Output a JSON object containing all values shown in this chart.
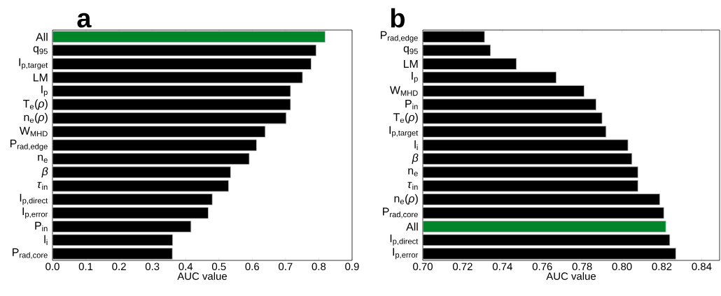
{
  "chart_data": [
    {
      "type": "bar",
      "orientation": "horizontal",
      "title": "a",
      "xlabel": "AUC value",
      "categories": [
        "All",
        "q$_{95}$",
        "I$_{p,target}$",
        "LM",
        "I$_{p}$",
        "T$_{e}$(*ρ*)",
        "n$_{e}$(*ρ*)",
        "W$_{MHD}$",
        "P$_{rad,edge}$",
        "n$_{e}$",
        "*β*",
        "*τ*$_{in}$",
        "I$_{p,direct}$",
        "I$_{p,error}$",
        "P$_{in}$",
        "l$_{i}$",
        "P$_{rad,core}$"
      ],
      "values": [
        0.819,
        0.792,
        0.777,
        0.751,
        0.715,
        0.715,
        0.702,
        0.639,
        0.613,
        0.591,
        0.535,
        0.529,
        0.48,
        0.468,
        0.416,
        0.361,
        0.36
      ],
      "colors": [
        "#00852b",
        "#000000",
        "#000000",
        "#000000",
        "#000000",
        "#000000",
        "#000000",
        "#000000",
        "#000000",
        "#000000",
        "#000000",
        "#000000",
        "#000000",
        "#000000",
        "#000000",
        "#000000",
        "#000000"
      ],
      "xlim": [
        0,
        0.9
      ],
      "xticks": [
        {
          "value": 0,
          "label": "0.0"
        },
        {
          "value": 0.1,
          "label": "0.1"
        },
        {
          "value": 0.2,
          "label": "0.2"
        },
        {
          "value": 0.3,
          "label": "0.3"
        },
        {
          "value": 0.4,
          "label": "0.4"
        },
        {
          "value": 0.5,
          "label": "0.5"
        },
        {
          "value": 0.6,
          "label": "0.6"
        },
        {
          "value": 0.7,
          "label": "0.7"
        },
        {
          "value": 0.8,
          "label": "0.8"
        },
        {
          "value": 0.9,
          "label": "0.9"
        }
      ]
    },
    {
      "type": "bar",
      "orientation": "horizontal",
      "title": "b",
      "xlabel": "AUC value",
      "categories": [
        "P$_{rad,edge}$",
        "q$_{95}$",
        "LM",
        "I$_{p}$",
        "W$_{MHD}$",
        "P$_{in}$",
        "T$_{e}$(*ρ*)",
        "I$_{p,target}$",
        "l$_{i}$",
        "*β*",
        "n$_{e}$",
        "*τ*$_{in}$",
        "n$_{e}$(*ρ*)",
        "P$_{rad,core}$",
        "All",
        "I$_{p,direct}$",
        "I$_{p,error}$"
      ],
      "values": [
        0.731,
        0.734,
        0.747,
        0.767,
        0.781,
        0.787,
        0.79,
        0.792,
        0.803,
        0.805,
        0.808,
        0.808,
        0.819,
        0.821,
        0.822,
        0.824,
        0.827
      ],
      "colors": [
        "#000000",
        "#000000",
        "#000000",
        "#000000",
        "#000000",
        "#000000",
        "#000000",
        "#000000",
        "#000000",
        "#000000",
        "#000000",
        "#000000",
        "#000000",
        "#000000",
        "#00852b",
        "#000000",
        "#000000"
      ],
      "xlim": [
        0.7,
        0.849
      ],
      "xticks": [
        {
          "value": 0.7,
          "label": "0.70"
        },
        {
          "value": 0.72,
          "label": "0.72"
        },
        {
          "value": 0.74,
          "label": "0.74"
        },
        {
          "value": 0.76,
          "label": "0.76"
        },
        {
          "value": 0.78,
          "label": "0.78"
        },
        {
          "value": 0.8,
          "label": "0.80"
        },
        {
          "value": 0.82,
          "label": "0.82"
        },
        {
          "value": 0.84,
          "label": "0.84"
        }
      ]
    }
  ]
}
